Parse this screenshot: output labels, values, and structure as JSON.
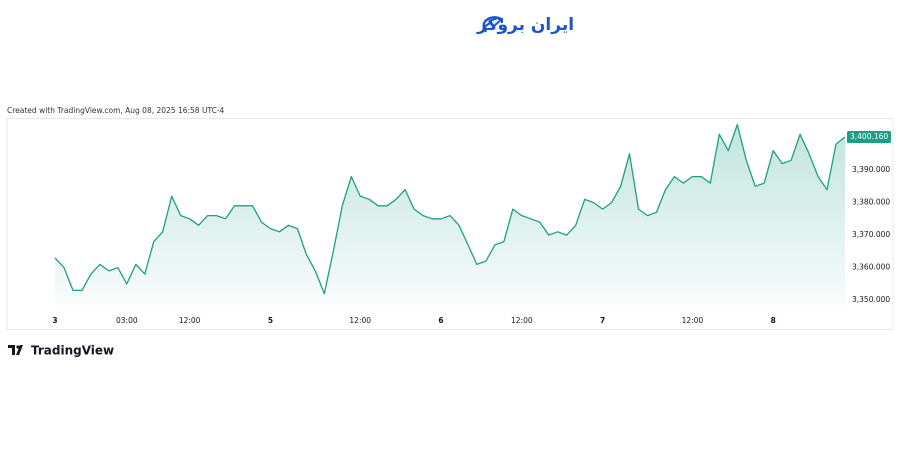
{
  "brand": "ایران بروکر",
  "footer_brand": "TradingView",
  "chart_data": {
    "type": "area",
    "caption": "Created with TradingView.com, Aug 08, 2025 16:58 UTC-4",
    "color": "#1e9e86",
    "categories": [
      "3",
      null,
      null,
      null,
      null,
      null,
      null,
      null,
      "03:00",
      null,
      null,
      null,
      null,
      null,
      null,
      "12:00",
      null,
      null,
      null,
      null,
      null,
      null,
      null,
      null,
      "5",
      null,
      null,
      null,
      null,
      null,
      null,
      null,
      null,
      null,
      "12:00",
      null,
      null,
      null,
      null,
      null,
      null,
      null,
      null,
      "6",
      null,
      null,
      null,
      null,
      null,
      null,
      null,
      null,
      "12:00",
      null,
      null,
      null,
      null,
      null,
      null,
      null,
      null,
      "7",
      null,
      null,
      null,
      null,
      null,
      null,
      null,
      null,
      null,
      "12:00",
      null,
      null,
      null,
      null,
      null,
      null,
      null,
      null,
      "8",
      null,
      null,
      null,
      null,
      null,
      null,
      null,
      null
    ],
    "values": [
      3363,
      3360,
      3353,
      3353,
      3358,
      3361,
      3359,
      3360,
      3355,
      3361,
      3358,
      3368,
      3371,
      3382,
      3376,
      3375,
      3373,
      3376,
      3376,
      3375,
      3379,
      3379,
      3379,
      3374,
      3372,
      3371,
      3373,
      3372,
      3364,
      3359,
      3352,
      3365,
      3379,
      3388,
      3382,
      3381,
      3379,
      3379,
      3381,
      3384,
      3378,
      3376,
      3375,
      3375,
      3376,
      3373,
      3367,
      3361,
      3362,
      3367,
      3368,
      3378,
      3376,
      3375,
      3374,
      3370,
      3371,
      3370,
      3373,
      3381,
      3380,
      3378,
      3380,
      3385,
      3395,
      3378,
      3376,
      3377,
      3384,
      3388,
      3386,
      3388,
      3388,
      3386,
      3401,
      3396,
      3404,
      3393,
      3385,
      3386,
      3396,
      3392,
      3393,
      3401,
      3395,
      3388,
      3384,
      3398,
      3400.16
    ],
    "last_value": 3400.16,
    "last_label": "3,400.160",
    "ylim": [
      3348.5,
      3405.4
    ],
    "yticks": [
      {
        "value": 3350,
        "label": "3,350.000"
      },
      {
        "value": 3360,
        "label": "3,360.000"
      },
      {
        "value": 3370,
        "label": "3,370.000"
      },
      {
        "value": 3380,
        "label": "3,380.000"
      },
      {
        "value": 3390,
        "label": "3,390.000"
      }
    ]
  }
}
